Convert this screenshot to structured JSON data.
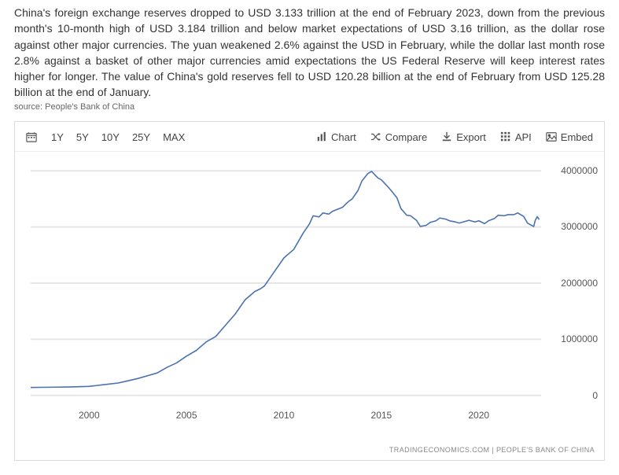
{
  "description": "China's foreign exchange reserves dropped to USD 3.133 trillion at the end of February 2023, down from the previous month's 10-month high of USD 3.184 trillion and below market expectations of USD 3.16 trillion, as the dollar rose against other major currencies. The yuan weakened 2.6% against the USD in February, while the dollar last month rose 2.8% against a basket of other major currencies amid expectations the US Federal Reserve will keep interest rates higher for longer. The value of China's gold reserves fell to USD 120.28 billion at the end of February from USD 125.28 billion at the end of January.",
  "source_line": "source: People's Bank of China",
  "toolbar": {
    "ranges": [
      "1Y",
      "5Y",
      "10Y",
      "25Y",
      "MAX"
    ],
    "tools": {
      "chart": "Chart",
      "compare": "Compare",
      "export": "Export",
      "api": "API",
      "embed": "Embed"
    }
  },
  "chart": {
    "type": "line",
    "line_color": "#4b72b0",
    "line_width": 1.6,
    "background_color": "#ffffff",
    "grid_color": "#e6e6e6",
    "grid_width": 0.5,
    "x_domain": [
      1997,
      2023.2
    ],
    "y_domain": [
      -200000,
      4200000
    ],
    "y_ticks": [
      0,
      1000000,
      2000000,
      3000000,
      4000000
    ],
    "y_tick_labels": [
      "0",
      "1000000",
      "2000000",
      "3000000",
      "4000000"
    ],
    "x_ticks": [
      2000,
      2005,
      2010,
      2015,
      2020
    ],
    "x_tick_labels": [
      "2000",
      "2005",
      "2010",
      "2015",
      "2020"
    ],
    "series": [
      {
        "x": 1997.0,
        "y": 140000
      },
      {
        "x": 1998.0,
        "y": 145000
      },
      {
        "x": 1999.0,
        "y": 150000
      },
      {
        "x": 2000.0,
        "y": 160000
      },
      {
        "x": 2001.0,
        "y": 200000
      },
      {
        "x": 2001.5,
        "y": 220000
      },
      {
        "x": 2002.0,
        "y": 260000
      },
      {
        "x": 2002.5,
        "y": 300000
      },
      {
        "x": 2003.0,
        "y": 350000
      },
      {
        "x": 2003.5,
        "y": 400000
      },
      {
        "x": 2004.0,
        "y": 500000
      },
      {
        "x": 2004.5,
        "y": 580000
      },
      {
        "x": 2005.0,
        "y": 700000
      },
      {
        "x": 2005.5,
        "y": 800000
      },
      {
        "x": 2006.0,
        "y": 950000
      },
      {
        "x": 2006.5,
        "y": 1050000
      },
      {
        "x": 2007.0,
        "y": 1250000
      },
      {
        "x": 2007.5,
        "y": 1450000
      },
      {
        "x": 2008.0,
        "y": 1700000
      },
      {
        "x": 2008.5,
        "y": 1850000
      },
      {
        "x": 2008.8,
        "y": 1900000
      },
      {
        "x": 2009.0,
        "y": 1950000
      },
      {
        "x": 2009.5,
        "y": 2200000
      },
      {
        "x": 2010.0,
        "y": 2450000
      },
      {
        "x": 2010.5,
        "y": 2600000
      },
      {
        "x": 2011.0,
        "y": 2900000
      },
      {
        "x": 2011.3,
        "y": 3050000
      },
      {
        "x": 2011.5,
        "y": 3200000
      },
      {
        "x": 2011.8,
        "y": 3180000
      },
      {
        "x": 2012.0,
        "y": 3250000
      },
      {
        "x": 2012.3,
        "y": 3230000
      },
      {
        "x": 2012.5,
        "y": 3280000
      },
      {
        "x": 2013.0,
        "y": 3350000
      },
      {
        "x": 2013.3,
        "y": 3450000
      },
      {
        "x": 2013.5,
        "y": 3500000
      },
      {
        "x": 2013.8,
        "y": 3650000
      },
      {
        "x": 2014.0,
        "y": 3820000
      },
      {
        "x": 2014.3,
        "y": 3950000
      },
      {
        "x": 2014.5,
        "y": 3990000
      },
      {
        "x": 2014.8,
        "y": 3880000
      },
      {
        "x": 2015.0,
        "y": 3840000
      },
      {
        "x": 2015.3,
        "y": 3730000
      },
      {
        "x": 2015.5,
        "y": 3650000
      },
      {
        "x": 2015.8,
        "y": 3520000
      },
      {
        "x": 2016.0,
        "y": 3330000
      },
      {
        "x": 2016.3,
        "y": 3210000
      },
      {
        "x": 2016.5,
        "y": 3200000
      },
      {
        "x": 2016.8,
        "y": 3120000
      },
      {
        "x": 2017.0,
        "y": 3010000
      },
      {
        "x": 2017.3,
        "y": 3030000
      },
      {
        "x": 2017.5,
        "y": 3080000
      },
      {
        "x": 2017.8,
        "y": 3110000
      },
      {
        "x": 2018.0,
        "y": 3160000
      },
      {
        "x": 2018.3,
        "y": 3140000
      },
      {
        "x": 2018.5,
        "y": 3110000
      },
      {
        "x": 2018.8,
        "y": 3090000
      },
      {
        "x": 2019.0,
        "y": 3070000
      },
      {
        "x": 2019.3,
        "y": 3100000
      },
      {
        "x": 2019.5,
        "y": 3120000
      },
      {
        "x": 2019.8,
        "y": 3090000
      },
      {
        "x": 2020.0,
        "y": 3110000
      },
      {
        "x": 2020.3,
        "y": 3060000
      },
      {
        "x": 2020.5,
        "y": 3110000
      },
      {
        "x": 2020.8,
        "y": 3150000
      },
      {
        "x": 2021.0,
        "y": 3210000
      },
      {
        "x": 2021.3,
        "y": 3200000
      },
      {
        "x": 2021.5,
        "y": 3220000
      },
      {
        "x": 2021.8,
        "y": 3220000
      },
      {
        "x": 2022.0,
        "y": 3250000
      },
      {
        "x": 2022.3,
        "y": 3190000
      },
      {
        "x": 2022.5,
        "y": 3070000
      },
      {
        "x": 2022.7,
        "y": 3030000
      },
      {
        "x": 2022.82,
        "y": 3010000
      },
      {
        "x": 2022.9,
        "y": 3120000
      },
      {
        "x": 2023.0,
        "y": 3184000
      },
      {
        "x": 2023.1,
        "y": 3133000
      }
    ],
    "label_fontsize": 12,
    "label_color": "#555555"
  },
  "attribution": "TRADINGECONOMICS.COM  |  PEOPLE'S BANK OF CHINA"
}
